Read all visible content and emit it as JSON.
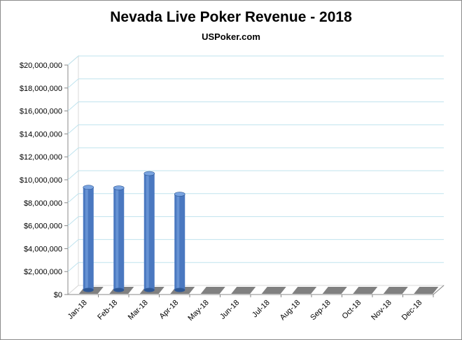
{
  "chart_data": {
    "type": "bar",
    "title": "Nevada Live Poker Revenue - 2018",
    "subtitle": "USPoker.com",
    "xlabel": "",
    "ylabel": "",
    "categories": [
      "Jan-18",
      "Feb-18",
      "Mar-18",
      "Apr-18",
      "May-18",
      "Jun-18",
      "Jul-18",
      "Aug-18",
      "Sep-18",
      "Oct-18",
      "Nov-18",
      "Dec-18"
    ],
    "series": [
      {
        "values": [
          8950000,
          8900000,
          10150000,
          8350000,
          null,
          null,
          null,
          null,
          null,
          null,
          null,
          null
        ]
      }
    ],
    "y_ticks": [
      "$0",
      "$2,000,000",
      "$4,000,000",
      "$6,000,000",
      "$8,000,000",
      "$10,000,000",
      "$12,000,000",
      "$14,000,000",
      "$16,000,000",
      "$18,000,000",
      "$20,000,000"
    ],
    "ylim": [
      0,
      20000000
    ],
    "grid": true,
    "legend": "none",
    "colors": {
      "bar": "#4a78c0",
      "bar_dark": "#2d5796",
      "bar_light": "#7aa4e0",
      "gridline": "#bfe3ee",
      "wall": "#d8d8d8"
    }
  }
}
